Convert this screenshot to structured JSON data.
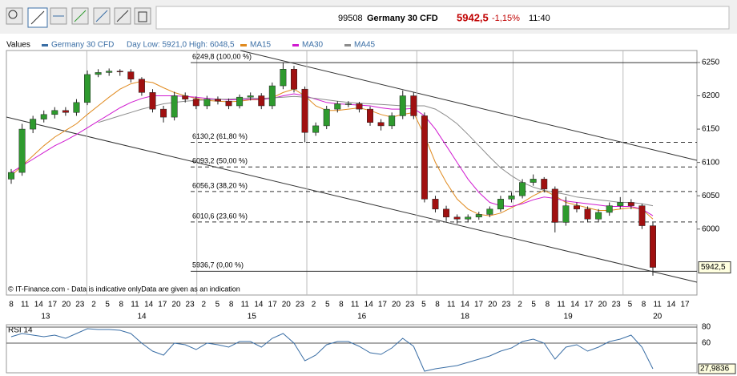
{
  "toolbar": {
    "code": "99508",
    "instrument": "Germany 30 CFD",
    "price": "5942,5",
    "change": "-1,15%",
    "time": "11:40"
  },
  "chart_data": [
    {
      "type": "candlestick",
      "name": "Germany 30 CFD",
      "color": "#3a6ea5",
      "legend_title": "Values",
      "day_range": "Day Low: 5921,0 High: 6048,5",
      "up_color": "#2e9a2e",
      "down_color": "#a01010",
      "watermark": "© IT-Finance.com - Data is indicative onlyData are given as an indication",
      "ylim": [
        5901,
        6268
      ],
      "yticks": [
        6000,
        6050,
        6100,
        6150,
        6200,
        6250
      ],
      "open": [
        6075,
        6085,
        6150,
        6165,
        6172,
        6178,
        6175,
        6190,
        6232,
        6235,
        6237,
        6236,
        6225,
        6205,
        6180,
        6168,
        6200,
        6195,
        6185,
        6195,
        6192,
        6185,
        6198,
        6200,
        6185,
        6215,
        6240,
        6210,
        6145,
        6155,
        6180,
        6188,
        6188,
        6180,
        6160,
        6155,
        6170,
        6200,
        6170,
        6045,
        6030,
        6018,
        6015,
        6018,
        6022,
        6030,
        6045,
        6050,
        6070,
        6075,
        6060,
        6010,
        6035,
        6030,
        6015,
        6025,
        6035,
        6040,
        6035,
        6005
      ],
      "high": [
        6090,
        6158,
        6170,
        6178,
        6183,
        6183,
        6195,
        6238,
        6240,
        6241,
        6240,
        6240,
        6228,
        6210,
        6185,
        6206,
        6205,
        6199,
        6200,
        6199,
        6196,
        6202,
        6205,
        6204,
        6220,
        6249.8,
        6245,
        6214,
        6160,
        6185,
        6192,
        6192,
        6191,
        6184,
        6165,
        6175,
        6208,
        6205,
        6175,
        6050,
        6035,
        6022,
        6022,
        6026,
        6034,
        6050,
        6055,
        6075,
        6082,
        6078,
        6064,
        6048.5,
        6040,
        6034,
        6030,
        6040,
        6048,
        6045,
        6038,
        6010
      ],
      "low": [
        6068,
        6080,
        6144,
        6160,
        6166,
        6170,
        6170,
        6186,
        6228,
        6230,
        6230,
        6220,
        6200,
        6175,
        6160,
        6163,
        6190,
        6180,
        6180,
        6187,
        6180,
        6181,
        6193,
        6180,
        6180,
        6210,
        6205,
        6130.2,
        6140,
        6150,
        6175,
        6183,
        6175,
        6155,
        6148,
        6150,
        6165,
        6165,
        6040,
        6025,
        6012,
        6008,
        6010,
        6014,
        6018,
        6026,
        6040,
        6046,
        6065,
        6055,
        5995,
        6005,
        6025,
        6010,
        6010,
        6020,
        6030,
        6030,
        6000,
        5930
      ],
      "close": [
        6085,
        6150,
        6165,
        6172,
        6178,
        6175,
        6190,
        6232,
        6235,
        6237,
        6236,
        6225,
        6205,
        6180,
        6168,
        6200,
        6195,
        6185,
        6195,
        6192,
        6185,
        6198,
        6200,
        6185,
        6215,
        6240,
        6210,
        6145,
        6155,
        6180,
        6188,
        6188,
        6180,
        6160,
        6155,
        6170,
        6200,
        6170,
        6045,
        6030,
        6018,
        6015,
        6018,
        6022,
        6030,
        6045,
        6050,
        6070,
        6075,
        6060,
        6010,
        6035,
        6030,
        6015,
        6025,
        6035,
        6040,
        6035,
        6005,
        5942.5
      ],
      "last_price_label": "5942,5",
      "series": [
        {
          "name": "MA15",
          "color": "#e08a1e",
          "values": [
            6080,
            6095,
            6110,
            6125,
            6138,
            6148,
            6158,
            6172,
            6185,
            6198,
            6210,
            6218,
            6222,
            6220,
            6212,
            6205,
            6200,
            6196,
            6193,
            6192,
            6191,
            6192,
            6194,
            6194,
            6197,
            6205,
            6210,
            6200,
            6185,
            6178,
            6178,
            6180,
            6182,
            6178,
            6172,
            6168,
            6172,
            6175,
            6140,
            6100,
            6070,
            6045,
            6030,
            6022,
            6020,
            6024,
            6032,
            6040,
            6050,
            6058,
            6050,
            6040,
            6036,
            6032,
            6028,
            6028,
            6030,
            6032,
            6030,
            6015
          ]
        },
        {
          "name": "MA30",
          "color": "#d01ad0",
          "values": [
            6085,
            6095,
            6105,
            6115,
            6125,
            6133,
            6142,
            6152,
            6162,
            6172,
            6182,
            6190,
            6196,
            6200,
            6200,
            6200,
            6199,
            6198,
            6196,
            6195,
            6194,
            6194,
            6195,
            6195,
            6196,
            6200,
            6203,
            6200,
            6195,
            6190,
            6188,
            6187,
            6186,
            6185,
            6182,
            6180,
            6180,
            6181,
            6170,
            6150,
            6125,
            6100,
            6075,
            6055,
            6040,
            6035,
            6034,
            6038,
            6044,
            6048,
            6046,
            6042,
            6040,
            6038,
            6036,
            6034,
            6034,
            6034,
            6030,
            6020
          ]
        },
        {
          "name": "MA45",
          "color": "#8c8c8c",
          "values": [
            null,
            null,
            null,
            null,
            null,
            null,
            null,
            null,
            6160,
            6165,
            6170,
            6175,
            6180,
            6184,
            6188,
            6190,
            6192,
            6193,
            6194,
            6195,
            6195,
            6196,
            6196,
            6196,
            6197,
            6198,
            6199,
            6198,
            6196,
            6194,
            6192,
            6190,
            6189,
            6188,
            6187,
            6186,
            6185,
            6185,
            6185,
            6180,
            6170,
            6158,
            6142,
            6125,
            6108,
            6092,
            6080,
            6070,
            6063,
            6058,
            6055,
            6052,
            6048,
            6046,
            6044,
            6042,
            6040,
            6040,
            6038,
            6035
          ]
        }
      ],
      "fib_levels": [
        {
          "value": 6249.8,
          "label": "6249,8 (100,00 %)",
          "dashed": false
        },
        {
          "value": 6130.2,
          "label": "6130,2 (61,80 %)",
          "dashed": true
        },
        {
          "value": 6093.2,
          "label": "6093,2 (50,00 %)",
          "dashed": true
        },
        {
          "value": 6056.3,
          "label": "6056,3 (38,20 %)",
          "dashed": true
        },
        {
          "value": 6010.6,
          "label": "6010,6 (23,60 %)",
          "dashed": true
        },
        {
          "value": 5936.7,
          "label": "5936,7 (0,00 %)",
          "dashed": false
        }
      ],
      "days": [
        {
          "label": "13",
          "hours": [
            8,
            11,
            14,
            17,
            20,
            23
          ]
        },
        {
          "label": "14",
          "hours": [
            2,
            5,
            8,
            11,
            14,
            17,
            20,
            23
          ]
        },
        {
          "label": "15",
          "hours": [
            2,
            5,
            8,
            11,
            14,
            17,
            20,
            23
          ]
        },
        {
          "label": "16",
          "hours": [
            2,
            5,
            8,
            11,
            14,
            17,
            20,
            23
          ]
        },
        {
          "label": "18",
          "hours": [
            5,
            8,
            11,
            14,
            17,
            20,
            23
          ]
        },
        {
          "label": "19",
          "hours": [
            2,
            5,
            8,
            11,
            14,
            17,
            20,
            23
          ]
        },
        {
          "label": "20",
          "hours": [
            5,
            8,
            11,
            14,
            17
          ]
        }
      ]
    },
    {
      "type": "line",
      "title": "RSI 14",
      "color": "#3a6ea5",
      "ylim": [
        23,
        83
      ],
      "yticks": [
        60,
        80
      ],
      "values": [
        68,
        72,
        70,
        68,
        70,
        66,
        72,
        78,
        77,
        77,
        76,
        72,
        60,
        50,
        45,
        60,
        58,
        52,
        60,
        58,
        55,
        62,
        62,
        55,
        66,
        72,
        60,
        38,
        45,
        58,
        62,
        62,
        56,
        48,
        46,
        54,
        66,
        56,
        25,
        28,
        30,
        32,
        36,
        40,
        44,
        50,
        54,
        62,
        65,
        60,
        40,
        55,
        58,
        50,
        55,
        62,
        65,
        70,
        55,
        27.9836
      ],
      "last_value_label": "27,9836"
    }
  ]
}
